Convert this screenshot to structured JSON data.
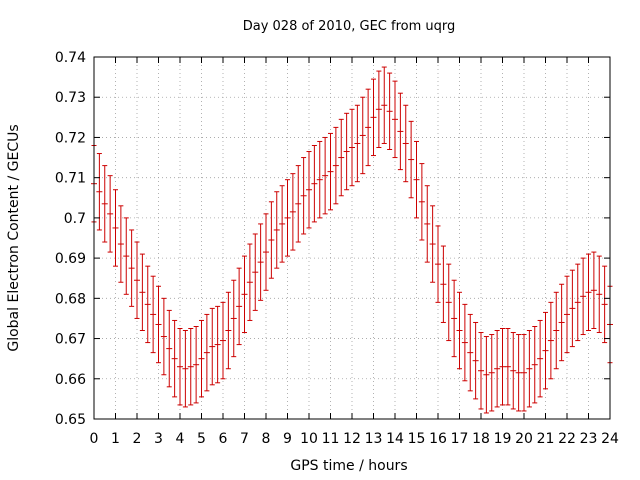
{
  "chart_data": {
    "type": "scatter",
    "title": "Day 028 of 2010, GEC from uqrg",
    "xlabel": "GPS time / hours",
    "ylabel": "Global Electron Content / GECUs",
    "xlim": [
      0,
      24
    ],
    "ylim": [
      0.65,
      0.74
    ],
    "xticks": [
      0,
      1,
      2,
      3,
      4,
      5,
      6,
      7,
      8,
      9,
      10,
      11,
      12,
      13,
      14,
      15,
      16,
      17,
      18,
      19,
      20,
      21,
      22,
      23,
      24
    ],
    "yticks": [
      0.65,
      0.66,
      0.67,
      0.68,
      0.69,
      0.7,
      0.71,
      0.72,
      0.73,
      0.74
    ],
    "ytick_labels": [
      "0.65",
      "0.66",
      "0.67",
      "0.68",
      "0.69",
      "0.7",
      "0.71",
      "0.72",
      "0.73",
      "0.74"
    ],
    "grid": true,
    "error_bars": true,
    "color": "#cc0000",
    "error": 0.0095,
    "x": [
      0,
      0.25,
      0.5,
      0.75,
      1,
      1.25,
      1.5,
      1.75,
      2,
      2.25,
      2.5,
      2.75,
      3,
      3.25,
      3.5,
      3.75,
      4,
      4.25,
      4.5,
      4.75,
      5,
      5.25,
      5.5,
      5.75,
      6,
      6.25,
      6.5,
      6.75,
      7,
      7.25,
      7.5,
      7.75,
      8,
      8.25,
      8.5,
      8.75,
      9,
      9.25,
      9.5,
      9.75,
      10,
      10.25,
      10.5,
      10.75,
      11,
      11.25,
      11.5,
      11.75,
      12,
      12.25,
      12.5,
      12.75,
      13,
      13.25,
      13.5,
      13.75,
      14,
      14.25,
      14.5,
      14.75,
      15,
      15.25,
      15.5,
      15.75,
      16,
      16.25,
      16.5,
      16.75,
      17,
      17.25,
      17.5,
      17.75,
      18,
      18.25,
      18.5,
      18.75,
      19,
      19.25,
      19.5,
      19.75,
      20,
      20.25,
      20.5,
      20.75,
      21,
      21.25,
      21.5,
      21.75,
      22,
      22.25,
      22.5,
      22.75,
      23,
      23.25,
      23.5,
      23.75,
      24
    ],
    "y": [
      0.7085,
      0.7065,
      0.7035,
      0.701,
      0.6975,
      0.6935,
      0.6905,
      0.6875,
      0.6845,
      0.6815,
      0.6785,
      0.676,
      0.6735,
      0.6705,
      0.6675,
      0.665,
      0.663,
      0.6625,
      0.663,
      0.6635,
      0.665,
      0.6665,
      0.668,
      0.6685,
      0.6695,
      0.672,
      0.675,
      0.678,
      0.681,
      0.684,
      0.6865,
      0.689,
      0.6915,
      0.6945,
      0.697,
      0.6985,
      0.7,
      0.7015,
      0.7035,
      0.7055,
      0.707,
      0.7085,
      0.7095,
      0.7105,
      0.7115,
      0.713,
      0.715,
      0.7165,
      0.7175,
      0.7185,
      0.7205,
      0.7225,
      0.725,
      0.727,
      0.728,
      0.7265,
      0.7245,
      0.7215,
      0.7185,
      0.7145,
      0.7095,
      0.704,
      0.6985,
      0.6935,
      0.6885,
      0.6835,
      0.679,
      0.675,
      0.672,
      0.669,
      0.6665,
      0.6645,
      0.662,
      0.661,
      0.6615,
      0.6625,
      0.663,
      0.663,
      0.662,
      0.6615,
      0.6615,
      0.6625,
      0.6635,
      0.665,
      0.667,
      0.6695,
      0.672,
      0.674,
      0.676,
      0.6775,
      0.679,
      0.6805,
      0.6815,
      0.682,
      0.681,
      0.6785,
      0.6735
    ]
  }
}
